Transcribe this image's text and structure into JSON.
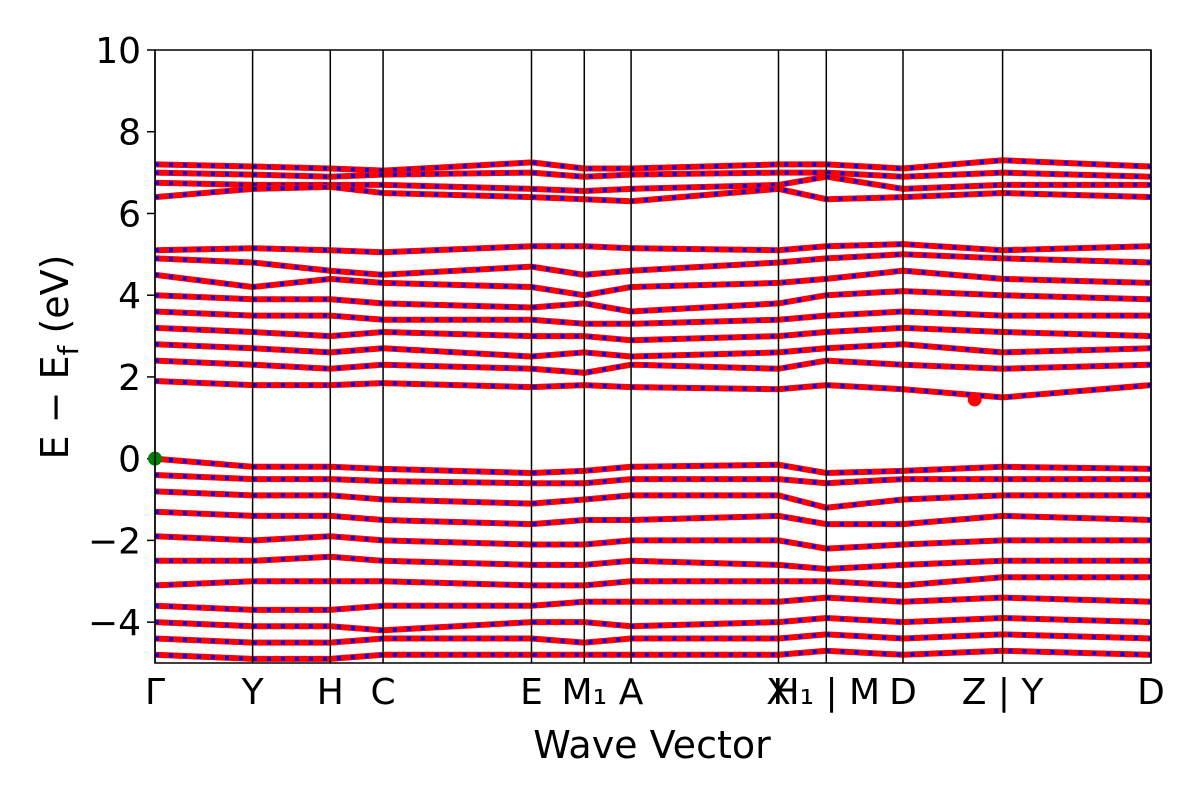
{
  "chart_data": {
    "type": "bands",
    "xlabel": "Wave Vector",
    "ylabel_parts": [
      "E − E",
      "f",
      " (eV)"
    ],
    "xlim": [
      0,
      1
    ],
    "ylim": [
      -5,
      10
    ],
    "yticks": [
      {
        "value": -4,
        "label": "−4"
      },
      {
        "value": -2,
        "label": "−2"
      },
      0,
      2,
      4,
      6,
      8,
      10
    ],
    "xticks": [
      {
        "value": 0,
        "label": "Γ"
      },
      {
        "value": 0.098,
        "label": "Y"
      },
      {
        "value": 0.176,
        "label": "H"
      },
      {
        "value": 0.229,
        "label": "C"
      },
      {
        "value": 0.378,
        "label": "E"
      },
      {
        "value": 0.431,
        "label": "M₁"
      },
      {
        "value": 0.478,
        "label": "A"
      },
      {
        "value": 0.626,
        "label": "X"
      },
      {
        "value": 0.674,
        "label": "H₁ | M"
      },
      {
        "value": 0.751,
        "label": "D"
      },
      {
        "value": 0.851,
        "label": "Z | Y"
      },
      {
        "value": 1.0,
        "label": "D"
      }
    ],
    "color": "#ff0000",
    "dash_color": "#0000ff",
    "x": [
      0,
      0.098,
      0.176,
      0.229,
      0.378,
      0.431,
      0.478,
      0.626,
      0.674,
      0.751,
      0.851,
      1.0
    ],
    "bands": [
      [
        7.2,
        7.15,
        7.1,
        7.05,
        7.25,
        7.1,
        7.1,
        7.2,
        7.2,
        7.1,
        7.3,
        7.15
      ],
      [
        7.0,
        6.95,
        6.9,
        6.95,
        7.0,
        6.9,
        6.95,
        7.0,
        7.0,
        6.9,
        7.0,
        6.9
      ],
      [
        6.75,
        6.7,
        6.7,
        6.7,
        6.6,
        6.55,
        6.6,
        6.7,
        6.9,
        6.6,
        6.7,
        6.7
      ],
      [
        6.4,
        6.6,
        6.65,
        6.5,
        6.4,
        6.35,
        6.3,
        6.6,
        6.35,
        6.4,
        6.5,
        6.4
      ],
      [
        5.1,
        5.15,
        5.1,
        5.05,
        5.2,
        5.2,
        5.15,
        5.1,
        5.2,
        5.25,
        5.1,
        5.2
      ],
      [
        4.9,
        4.8,
        4.6,
        4.5,
        4.7,
        4.5,
        4.6,
        4.8,
        4.9,
        5.0,
        4.9,
        4.8
      ],
      [
        4.5,
        4.2,
        4.4,
        4.3,
        4.2,
        4.0,
        4.2,
        4.3,
        4.4,
        4.6,
        4.4,
        4.3
      ],
      [
        4.0,
        3.9,
        3.9,
        3.8,
        3.7,
        3.8,
        3.6,
        3.8,
        4.0,
        4.1,
        4.0,
        3.9
      ],
      [
        3.6,
        3.5,
        3.5,
        3.4,
        3.4,
        3.3,
        3.3,
        3.4,
        3.5,
        3.6,
        3.5,
        3.5
      ],
      [
        3.2,
        3.1,
        3.0,
        3.1,
        3.0,
        3.0,
        2.9,
        3.0,
        3.1,
        3.2,
        3.1,
        3.0
      ],
      [
        2.8,
        2.7,
        2.6,
        2.7,
        2.5,
        2.6,
        2.5,
        2.6,
        2.7,
        2.8,
        2.6,
        2.7
      ],
      [
        2.4,
        2.3,
        2.2,
        2.3,
        2.2,
        2.1,
        2.3,
        2.2,
        2.4,
        2.3,
        2.2,
        2.3
      ],
      [
        1.9,
        1.8,
        1.8,
        1.85,
        1.75,
        1.8,
        1.75,
        1.7,
        1.8,
        1.7,
        1.5,
        1.8
      ],
      [
        0.0,
        -0.2,
        -0.2,
        -0.25,
        -0.35,
        -0.3,
        -0.2,
        -0.15,
        -0.35,
        -0.3,
        -0.2,
        -0.25
      ],
      [
        -0.4,
        -0.5,
        -0.5,
        -0.55,
        -0.6,
        -0.6,
        -0.5,
        -0.5,
        -0.6,
        -0.5,
        -0.5,
        -0.5
      ],
      [
        -0.8,
        -0.9,
        -0.9,
        -1.0,
        -1.1,
        -1.0,
        -0.9,
        -0.9,
        -1.2,
        -1.0,
        -0.9,
        -0.9
      ],
      [
        -1.3,
        -1.4,
        -1.4,
        -1.5,
        -1.6,
        -1.5,
        -1.5,
        -1.4,
        -1.6,
        -1.6,
        -1.4,
        -1.5
      ],
      [
        -1.9,
        -2.0,
        -1.9,
        -2.0,
        -2.1,
        -2.1,
        -2.0,
        -2.0,
        -2.2,
        -2.1,
        -2.0,
        -2.0
      ],
      [
        -2.5,
        -2.5,
        -2.4,
        -2.5,
        -2.6,
        -2.6,
        -2.5,
        -2.6,
        -2.7,
        -2.6,
        -2.5,
        -2.5
      ],
      [
        -3.1,
        -3.0,
        -3.0,
        -3.0,
        -3.1,
        -3.1,
        -3.0,
        -3.0,
        -3.0,
        -3.1,
        -2.9,
        -2.9
      ],
      [
        -3.6,
        -3.7,
        -3.7,
        -3.6,
        -3.6,
        -3.5,
        -3.5,
        -3.5,
        -3.4,
        -3.5,
        -3.4,
        -3.5
      ],
      [
        -4.0,
        -4.1,
        -4.1,
        -4.2,
        -4.0,
        -4.0,
        -4.1,
        -4.0,
        -3.9,
        -4.0,
        -3.9,
        -4.0
      ],
      [
        -4.4,
        -4.5,
        -4.5,
        -4.4,
        -4.4,
        -4.5,
        -4.4,
        -4.4,
        -4.3,
        -4.4,
        -4.3,
        -4.4
      ],
      [
        -4.8,
        -4.9,
        -4.9,
        -4.8,
        -4.8,
        -4.8,
        -4.8,
        -4.8,
        -4.7,
        -4.8,
        -4.7,
        -4.8
      ]
    ],
    "markers": [
      {
        "x": 0,
        "y": 0,
        "color": "#008000"
      },
      {
        "x": 0.823,
        "y": 1.45,
        "color": "#ff0000"
      }
    ]
  }
}
